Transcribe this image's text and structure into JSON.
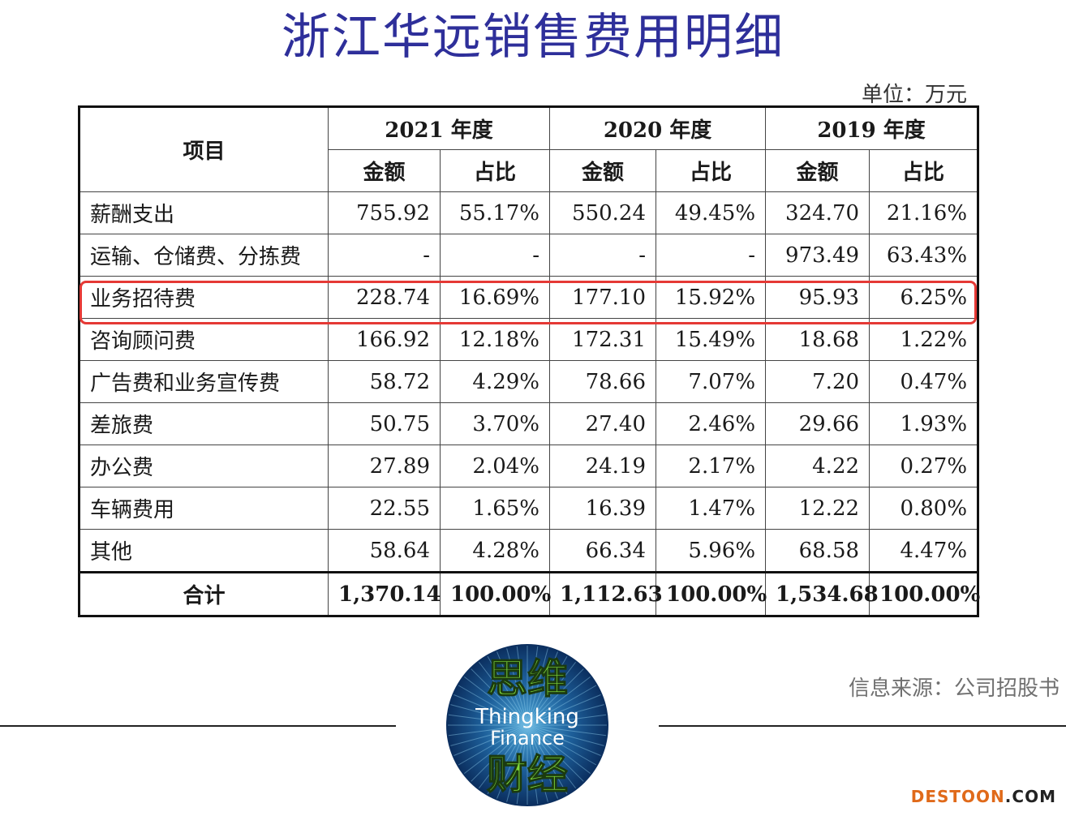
{
  "title": "浙江华远销售费用明细",
  "unit": "单位：万元",
  "table": {
    "item_header": "项目",
    "years": [
      "2021 年度",
      "2020 年度",
      "2019 年度"
    ],
    "amount_header": "金额",
    "ratio_header": "占比",
    "rows": [
      {
        "label": "薪酬支出",
        "cells": [
          "755.92",
          "55.17%",
          "550.24",
          "49.45%",
          "324.70",
          "21.16%"
        ]
      },
      {
        "label": "运输、仓储费、分拣费",
        "cells": [
          "-",
          "-",
          "-",
          "-",
          "973.49",
          "63.43%"
        ]
      },
      {
        "label": "业务招待费",
        "cells": [
          "228.74",
          "16.69%",
          "177.10",
          "15.92%",
          "95.93",
          "6.25%"
        ]
      },
      {
        "label": "咨询顾问费",
        "cells": [
          "166.92",
          "12.18%",
          "172.31",
          "15.49%",
          "18.68",
          "1.22%"
        ]
      },
      {
        "label": "广告费和业务宣传费",
        "cells": [
          "58.72",
          "4.29%",
          "78.66",
          "7.07%",
          "7.20",
          "0.47%"
        ]
      },
      {
        "label": "差旅费",
        "cells": [
          "50.75",
          "3.70%",
          "27.40",
          "2.46%",
          "29.66",
          "1.93%"
        ]
      },
      {
        "label": "办公费",
        "cells": [
          "27.89",
          "2.04%",
          "24.19",
          "2.17%",
          "4.22",
          "0.27%"
        ]
      },
      {
        "label": "车辆费用",
        "cells": [
          "22.55",
          "1.65%",
          "16.39",
          "1.47%",
          "12.22",
          "0.80%"
        ]
      },
      {
        "label": "其他",
        "cells": [
          "58.64",
          "4.28%",
          "66.34",
          "5.96%",
          "68.58",
          "4.47%"
        ]
      }
    ],
    "total": {
      "label": "合计",
      "cells": [
        "1,370.14",
        "100.00%",
        "1,112.63",
        "100.00%",
        "1,534.68",
        "100.00%"
      ]
    }
  },
  "highlight_color": "#e53935",
  "source": "信息来源：公司招股书",
  "logo": {
    "top": "思维",
    "middle1": "Thingking",
    "middle2": "Finance",
    "bottom": "财经"
  },
  "watermark": {
    "brand": "DESTOON",
    "dot": ".",
    "tld": "COM"
  }
}
